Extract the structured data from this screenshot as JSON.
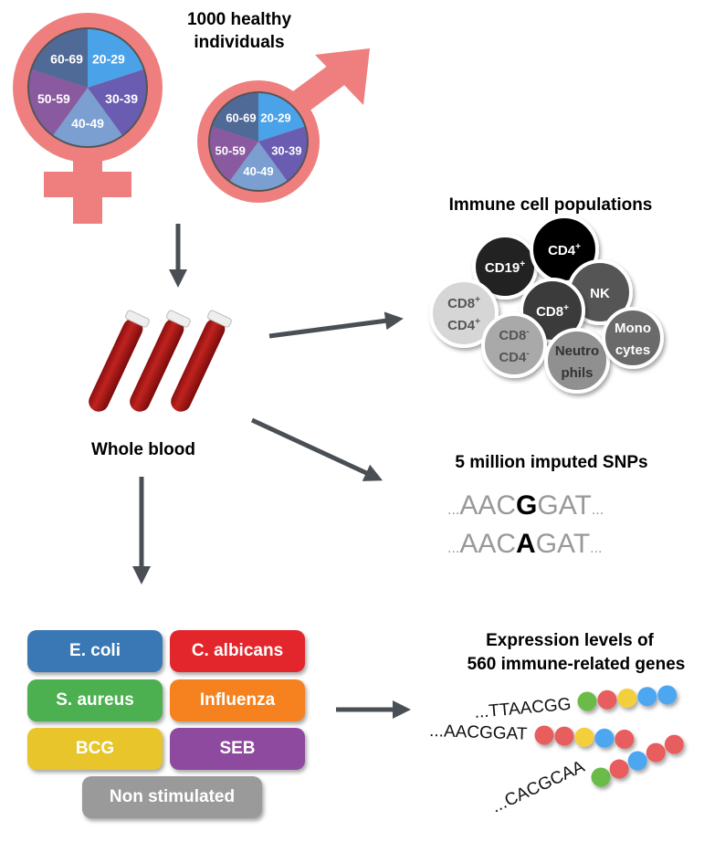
{
  "title": "1000 healthy individuals",
  "title_line1": "1000 healthy",
  "title_line2": "individuals",
  "age_groups": [
    "20-29",
    "30-39",
    "40-49",
    "50-59",
    "60-69"
  ],
  "age_colors": [
    "#4aa3e8",
    "#6a5cb0",
    "#7a9fd0",
    "#8a5aa0",
    "#4f6a96"
  ],
  "symbol_color": "#ef7f7f",
  "arrow_color": "#4a4f55",
  "whole_blood": "Whole blood",
  "immune": {
    "title": "Immune cell populations",
    "cells": [
      {
        "label1": "CD19",
        "sup1": "+",
        "label2": "",
        "sup2": "",
        "color": "#222222",
        "text": "#ffffff"
      },
      {
        "label1": "CD4",
        "sup1": "+",
        "label2": "",
        "sup2": "",
        "color": "#050505",
        "text": "#ffffff"
      },
      {
        "label1": "NK",
        "sup1": "",
        "label2": "",
        "sup2": "",
        "color": "#555555",
        "text": "#ffffff"
      },
      {
        "label1": "CD8",
        "sup1": "+",
        "label2": "CD4",
        "sup2": "+",
        "color": "#d6d6d6",
        "text": "#555555"
      },
      {
        "label1": "CD8",
        "sup1": "+",
        "label2": "",
        "sup2": "",
        "color": "#3a3a3a",
        "text": "#ffffff"
      },
      {
        "label1": "CD8",
        "sup1": "-",
        "label2": "CD4",
        "sup2": "-",
        "color": "#a9a9a9",
        "text": "#555555"
      },
      {
        "label1": "Neutro",
        "sup1": "",
        "label2": "phils",
        "sup2": "",
        "color": "#909090",
        "text": "#333333"
      },
      {
        "label1": "Mono",
        "sup1": "",
        "label2": "cytes",
        "sup2": "",
        "color": "#6a6a6a",
        "text": "#ffffff"
      }
    ]
  },
  "snps": {
    "title": "5 million imputed SNPs",
    "seq1": {
      "pre": "AAC",
      "snp": "G",
      "post": "GAT"
    },
    "seq2": {
      "pre": "AAC",
      "snp": "A",
      "post": "GAT"
    },
    "dots": "..."
  },
  "stimuli": [
    {
      "label": "E. coli",
      "color": "#3a78b5"
    },
    {
      "label": "C. albicans",
      "color": "#e3262c"
    },
    {
      "label": "S. aureus",
      "color": "#4caf50"
    },
    {
      "label": "Influenza",
      "color": "#f5821f"
    },
    {
      "label": "BCG",
      "color": "#e8c52a"
    },
    {
      "label": "SEB",
      "color": "#8e4a9e"
    },
    {
      "label": "Non stimulated",
      "color": "#9a9a9a"
    }
  ],
  "expression": {
    "title_line1": "Expression levels of",
    "title_line2": "560 immune-related genes",
    "seqs": [
      "...TTAACGG",
      "...AACGGAT",
      "...CACGCAA"
    ],
    "bead_colors": {
      "green": "#6bbb47",
      "red": "#e85d5d",
      "yellow": "#f2cf3b",
      "blue": "#4ea6f0"
    }
  }
}
